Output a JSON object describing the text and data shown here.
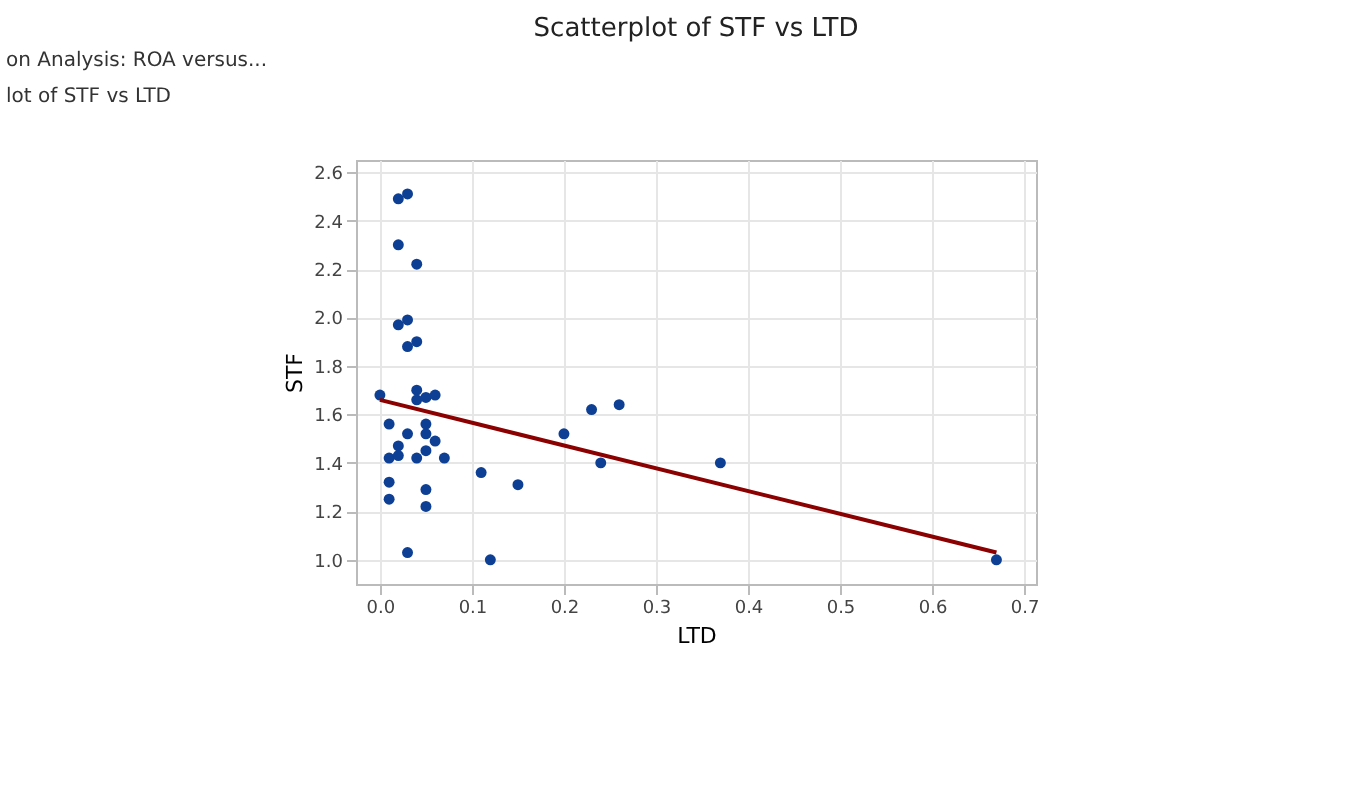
{
  "chart_data": {
    "type": "scatter",
    "title": "Scatterplot of STF vs LTD",
    "xlabel": "LTD",
    "ylabel": "STF",
    "annotations": [
      "on Analysis: ROA versus...",
      "lot of STF vs LTD"
    ],
    "xlim": [
      -0.026,
      0.713
    ],
    "ylim": [
      0.9,
      2.65
    ],
    "xticks": [
      {
        "value": 0,
        "label": "0.0"
      },
      0.1,
      0.2,
      0.3,
      0.4,
      0.5,
      0.6,
      0.7
    ],
    "yticks": [
      {
        "value": 1,
        "label": "1.0"
      },
      1.2,
      1.4,
      1.6,
      1.8,
      {
        "value": 2,
        "label": "2.0"
      },
      2.2,
      2.4,
      2.6
    ],
    "grid": true,
    "series": [
      {
        "color": "#0d3f94",
        "marker": "circle",
        "x": [
          0.0,
          0.01,
          0.01,
          0.01,
          0.01,
          0.02,
          0.02,
          0.02,
          0.03,
          0.02,
          0.02,
          0.03,
          0.03,
          0.03,
          0.03,
          0.04,
          0.04,
          0.04,
          0.04,
          0.04,
          0.05,
          0.05,
          0.05,
          0.05,
          0.05,
          0.05,
          0.06,
          0.06,
          0.07,
          0.11,
          0.12,
          0.15,
          0.2,
          0.23,
          0.24,
          0.26,
          0.37,
          0.67
        ],
        "values": [
          1.68,
          1.56,
          1.42,
          1.32,
          1.25,
          1.47,
          1.43,
          2.49,
          2.51,
          2.3,
          1.97,
          1.99,
          1.88,
          1.52,
          1.03,
          1.7,
          1.66,
          1.9,
          2.22,
          1.42,
          1.67,
          1.56,
          1.52,
          1.45,
          1.29,
          1.22,
          1.68,
          1.49,
          1.42,
          1.36,
          1.0,
          1.31,
          1.52,
          1.62,
          1.4,
          1.64,
          1.4,
          1.0
        ]
      },
      {
        "type": "line",
        "color": "#8b0000",
        "line_style": "solid",
        "x": [
          0.0,
          0.67
        ],
        "values": [
          1.66,
          1.03
        ]
      }
    ]
  }
}
